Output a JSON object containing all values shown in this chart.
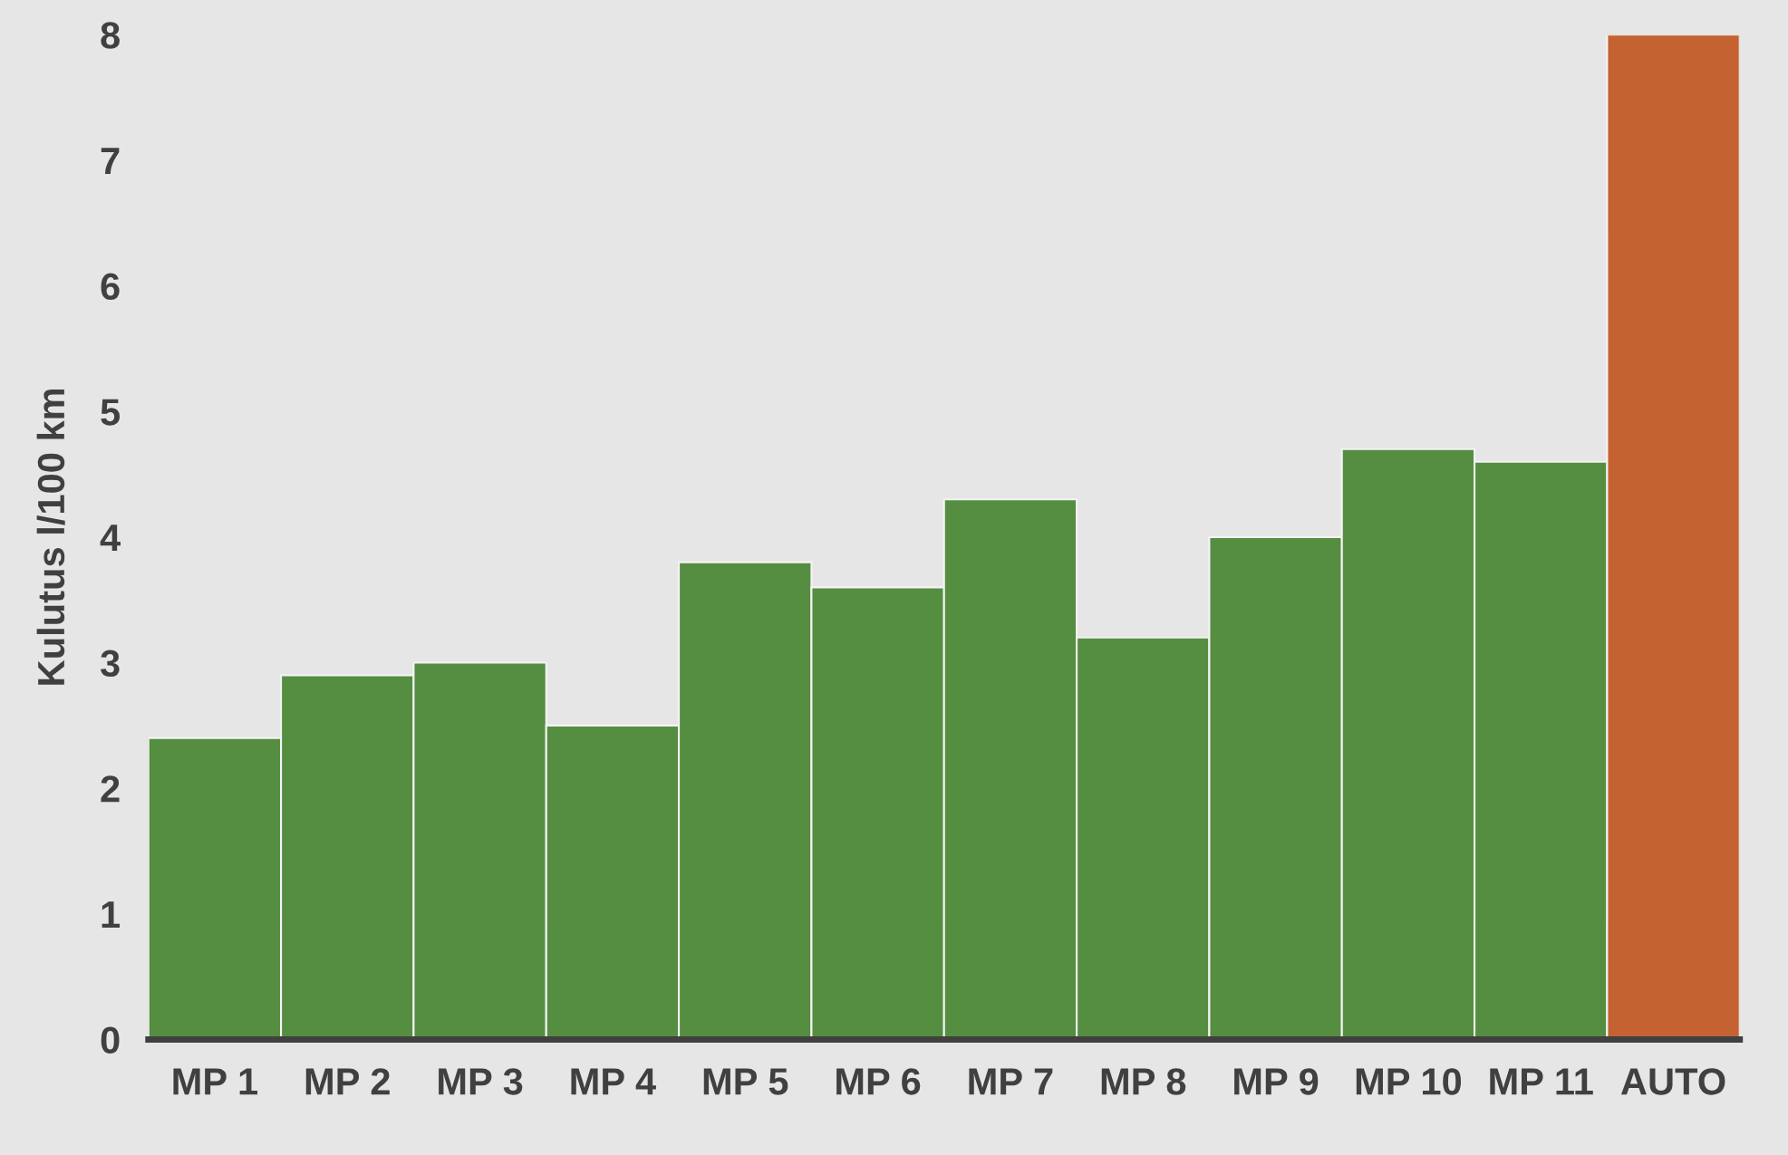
{
  "chart_data": {
    "type": "bar",
    "ylabel": "Kulutus l/100 km",
    "categories": [
      "MP 1",
      "MP 2",
      "MP 3",
      "MP 4",
      "MP 5",
      "MP 6",
      "MP 7",
      "MP 8",
      "MP 9",
      "MP 10",
      "MP 11",
      "AUTO"
    ],
    "values": [
      2.4,
      2.9,
      3.0,
      2.5,
      3.8,
      3.6,
      4.3,
      3.2,
      4.0,
      4.7,
      4.6,
      8.0
    ],
    "colors": [
      "#558e41",
      "#558e41",
      "#558e41",
      "#558e41",
      "#558e41",
      "#558e41",
      "#558e41",
      "#558e41",
      "#558e41",
      "#558e41",
      "#558e41",
      "#c46232"
    ],
    "ylim": [
      0,
      8
    ],
    "yticks": [
      0,
      1,
      2,
      3,
      4,
      5,
      6,
      7,
      8
    ],
    "grid": false,
    "legend": false
  }
}
